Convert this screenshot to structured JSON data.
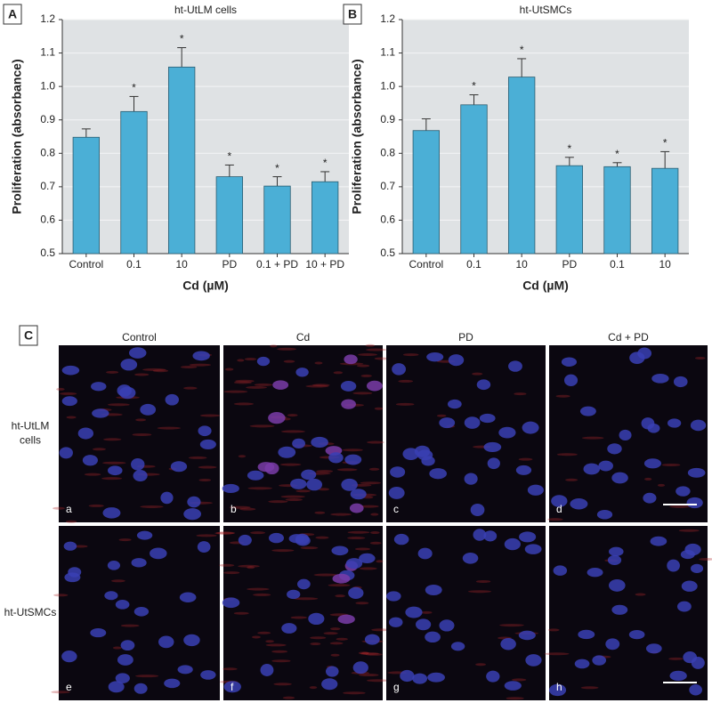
{
  "chart_data": [
    {
      "type": "bar",
      "panel_label": "A",
      "title": "ht-UtLM cells",
      "categories": [
        "Control",
        "0.1",
        "10",
        "PD",
        "0.1 + PD",
        "10 + PD"
      ],
      "values": [
        0.848,
        0.925,
        1.058,
        0.73,
        0.702,
        0.715
      ],
      "errors": [
        0.025,
        0.045,
        0.058,
        0.035,
        0.028,
        0.03
      ],
      "markers": [
        null,
        "*",
        "*",
        "*",
        "*",
        "*"
      ],
      "color": "#4bafd6",
      "ylim": [
        0.5,
        1.2
      ],
      "yticks": [
        0.5,
        0.6,
        0.7,
        0.8,
        0.9,
        {
          "value": 1,
          "label": "1.0"
        },
        1.1,
        1.2
      ],
      "ylabel": "Proliferation (absorbance)",
      "xlabel": "Cd (µM)",
      "grid": true
    },
    {
      "type": "bar",
      "panel_label": "B",
      "title": "ht-UtSMCs",
      "categories": [
        "Control",
        "0.1",
        "10",
        "PD",
        "0.1",
        "10"
      ],
      "values": [
        0.868,
        0.945,
        1.028,
        0.763,
        0.76,
        0.755
      ],
      "errors": [
        0.035,
        0.03,
        0.055,
        0.025,
        0.012,
        0.05
      ],
      "markers": [
        null,
        "*",
        "*",
        "*",
        "*",
        "*"
      ],
      "color": "#4bafd6",
      "ylim": [
        0.5,
        1.2
      ],
      "yticks": [
        0.5,
        0.6,
        0.7,
        0.8,
        0.9,
        {
          "value": 1,
          "label": "1.0"
        },
        1.1,
        1.2
      ],
      "ylabel": "Proliferation (absorbance)",
      "xlabel": "Cd (µM)",
      "grid": true
    }
  ],
  "panel_c": {
    "label": "C",
    "columns": [
      "Control",
      "Cd",
      "PD",
      "Cd + PD"
    ],
    "rows": [
      [
        "ht-UtLM",
        "cells"
      ],
      [
        "ht-UtSMCs"
      ]
    ],
    "letters": [
      "a",
      "b",
      "c",
      "d",
      "e",
      "f",
      "g",
      "h"
    ]
  }
}
